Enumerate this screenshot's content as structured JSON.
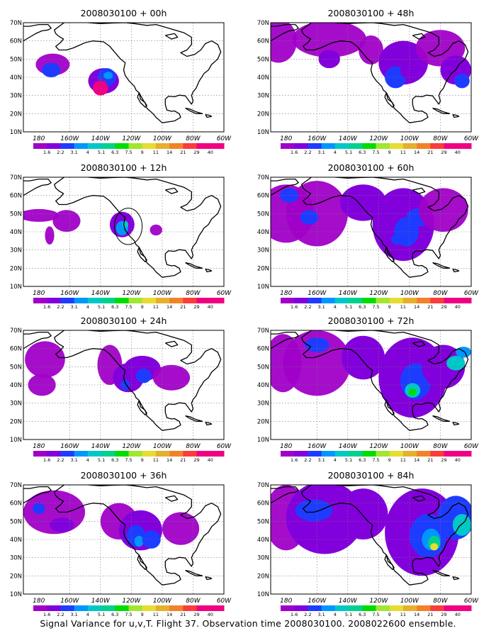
{
  "caption": "Signal Variance for u,v,T. Flight 37. Observation time 2008030100. 2008022600 ensemble.",
  "colorbar": {
    "labels": [
      "1.6",
      "2.2",
      "3.1",
      "4",
      "5.1",
      "6.3",
      "7.5",
      "9",
      "11",
      "14",
      "21",
      "29",
      "40"
    ],
    "colors": [
      "#a000c8",
      "#8200dc",
      "#1e3cff",
      "#0096ff",
      "#00c8c8",
      "#00d28c",
      "#00dc00",
      "#a0e632",
      "#e6dc32",
      "#e6af2d",
      "#f08228",
      "#fa3c3c",
      "#f00082"
    ]
  },
  "chart_data": [
    {
      "type": "heatmap",
      "title": "2008030100 + 00h",
      "x_ticks": [
        "180",
        "160W",
        "140W",
        "120W",
        "100W",
        "80W",
        "60W"
      ],
      "y_ticks": [
        "10N",
        "20N",
        "30N",
        "40N",
        "50N",
        "60N",
        "70N"
      ],
      "xlim": [
        170,
        300
      ],
      "ylim": [
        10,
        70
      ],
      "grid": true,
      "colorbar": "bottom",
      "features": [
        {
          "label": "marker",
          "lon": 220,
          "lat": 34,
          "shape": "circle"
        }
      ]
    },
    {
      "type": "heatmap",
      "title": "2008030100 + 12h",
      "x_ticks": [
        "180",
        "160W",
        "140W",
        "120W",
        "100W",
        "80W",
        "60W"
      ],
      "y_ticks": [
        "10N",
        "20N",
        "30N",
        "40N",
        "50N",
        "60N",
        "70N"
      ],
      "xlim": [
        170,
        300
      ],
      "ylim": [
        10,
        70
      ],
      "grid": true,
      "colorbar": "bottom",
      "features": [
        {
          "label": "marker",
          "lon": 238,
          "lat": 43,
          "shape": "circle"
        }
      ]
    },
    {
      "type": "heatmap",
      "title": "2008030100 + 24h",
      "x_ticks": [
        "180",
        "160W",
        "140W",
        "120W",
        "100W",
        "80W",
        "60W"
      ],
      "y_ticks": [
        "10N",
        "20N",
        "30N",
        "40N",
        "50N",
        "60N",
        "70N"
      ],
      "xlim": [
        170,
        300
      ],
      "ylim": [
        10,
        70
      ],
      "grid": true,
      "colorbar": "bottom"
    },
    {
      "type": "heatmap",
      "title": "2008030100 + 36h",
      "x_ticks": [
        "180",
        "160W",
        "140W",
        "120W",
        "100W",
        "80W",
        "60W"
      ],
      "y_ticks": [
        "10N",
        "20N",
        "30N",
        "40N",
        "50N",
        "60N",
        "70N"
      ],
      "xlim": [
        170,
        300
      ],
      "ylim": [
        10,
        70
      ],
      "grid": true,
      "colorbar": "bottom"
    },
    {
      "type": "heatmap",
      "title": "2008030100 + 48h",
      "x_ticks": [
        "180",
        "160W",
        "140W",
        "120W",
        "100W",
        "80W",
        "60W"
      ],
      "y_ticks": [
        "10N",
        "20N",
        "30N",
        "40N",
        "50N",
        "60N",
        "70N"
      ],
      "xlim": [
        170,
        300
      ],
      "ylim": [
        10,
        70
      ],
      "grid": true,
      "colorbar": "bottom"
    },
    {
      "type": "heatmap",
      "title": "2008030100 + 60h",
      "x_ticks": [
        "180",
        "160W",
        "140W",
        "120W",
        "100W",
        "80W",
        "60W"
      ],
      "y_ticks": [
        "10N",
        "20N",
        "30N",
        "40N",
        "50N",
        "60N",
        "70N"
      ],
      "xlim": [
        170,
        300
      ],
      "ylim": [
        10,
        70
      ],
      "grid": true,
      "colorbar": "bottom"
    },
    {
      "type": "heatmap",
      "title": "2008030100 + 72h",
      "x_ticks": [
        "180",
        "160W",
        "140W",
        "120W",
        "100W",
        "80W",
        "60W"
      ],
      "y_ticks": [
        "10N",
        "20N",
        "30N",
        "40N",
        "50N",
        "60N",
        "70N"
      ],
      "xlim": [
        170,
        300
      ],
      "ylim": [
        10,
        70
      ],
      "grid": true,
      "colorbar": "bottom"
    },
    {
      "type": "heatmap",
      "title": "2008030100 + 84h",
      "x_ticks": [
        "180",
        "160W",
        "140W",
        "120W",
        "100W",
        "80W",
        "60W"
      ],
      "y_ticks": [
        "10N",
        "20N",
        "30N",
        "40N",
        "50N",
        "60N",
        "70N"
      ],
      "xlim": [
        170,
        300
      ],
      "ylim": [
        10,
        70
      ],
      "grid": true,
      "colorbar": "bottom"
    }
  ]
}
